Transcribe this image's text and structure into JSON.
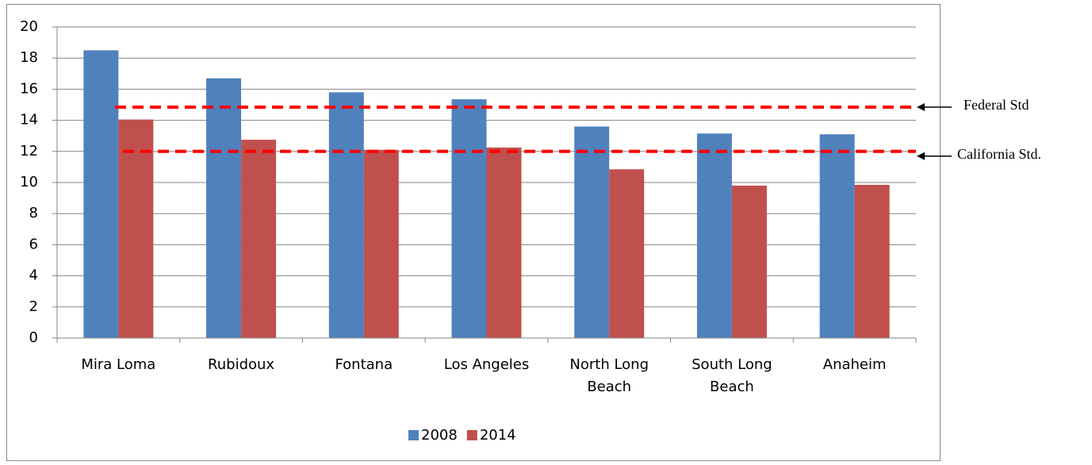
{
  "chart_data": {
    "type": "bar",
    "categories": [
      "Mira Loma",
      "Rubidoux",
      "Fontana",
      "Los Angeles",
      "North Long Beach",
      "South Long Beach",
      "Anaheim"
    ],
    "series": [
      {
        "name": "2008",
        "color": "#4f81bd",
        "values": [
          18.5,
          16.7,
          15.8,
          15.35,
          13.6,
          13.15,
          13.1
        ]
      },
      {
        "name": "2014",
        "color": "#c0504d",
        "values": [
          14.05,
          12.75,
          12.1,
          12.25,
          10.85,
          9.8,
          9.85
        ]
      }
    ],
    "ylim": [
      0,
      20
    ],
    "yticks": [
      0,
      2,
      4,
      6,
      8,
      10,
      12,
      14,
      16,
      18,
      20
    ],
    "grid": true,
    "legend": "bottom",
    "reference_lines": [
      {
        "label": "Federal Std",
        "value": 14.85,
        "color": "#ff0000"
      },
      {
        "label": "California Std.",
        "value": 12,
        "color": "#ff0000"
      }
    ]
  }
}
